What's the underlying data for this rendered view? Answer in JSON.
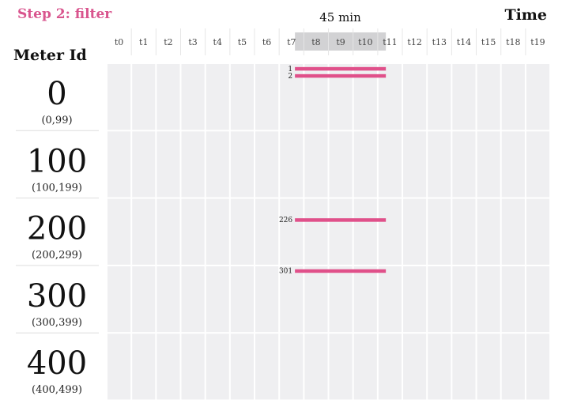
{
  "title": "Step 2: filter",
  "axis_title": "Time",
  "row_header": "Meter Id",
  "window_label": "45 min",
  "colors": {
    "accent": "#d9558e",
    "bar": "#e0508a",
    "cell": "#efeff1",
    "window": "#d2d2d4"
  },
  "time_labels": [
    "t0",
    "t1",
    "t2",
    "t3",
    "t4",
    "t5",
    "t6",
    "t7",
    "t8",
    "t9",
    "t10",
    "t11",
    "t12",
    "t13",
    "t14",
    "t15",
    "t18",
    "t19"
  ],
  "window": {
    "start_col": 7.64,
    "end_col": 11.33
  },
  "rows": [
    {
      "label": "0",
      "range": "(0,99)",
      "base": 0
    },
    {
      "label": "100",
      "range": "(100,199)",
      "base": 100
    },
    {
      "label": "200",
      "range": "(200,299)",
      "base": 200
    },
    {
      "label": "300",
      "range": "(300,399)",
      "base": 300
    },
    {
      "label": "400",
      "range": "(400,499)",
      "base": 400
    }
  ],
  "bars": [
    {
      "meter": "1",
      "id": 1,
      "start_col": 7.64,
      "end_col": 11.33
    },
    {
      "meter": "2",
      "id": 2,
      "start_col": 7.64,
      "end_col": 11.33
    },
    {
      "meter": "226",
      "id": 226,
      "start_col": 7.64,
      "end_col": 11.33
    },
    {
      "meter": "301",
      "id": 301,
      "start_col": 7.64,
      "end_col": 11.33
    }
  ]
}
